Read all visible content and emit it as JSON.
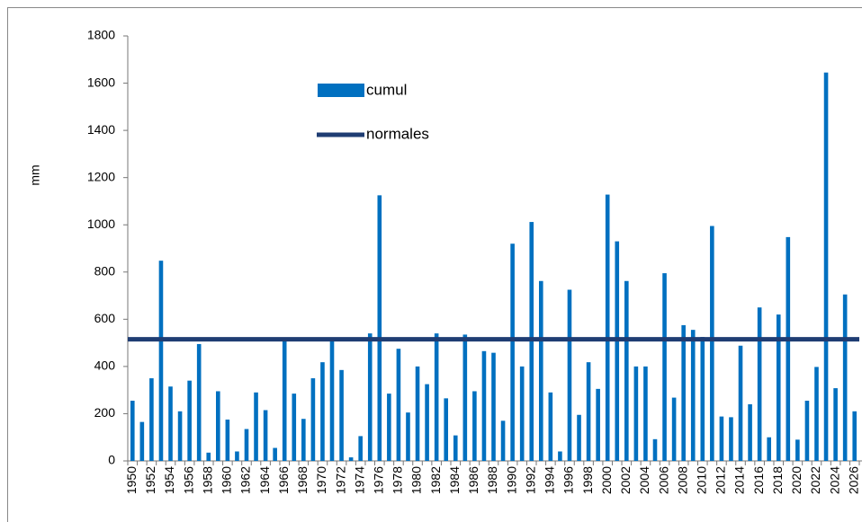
{
  "chart_data": {
    "type": "bar",
    "y_label": "mm",
    "categories": [
      "1950",
      null,
      "1952",
      null,
      "1954",
      null,
      "1956",
      null,
      "1958",
      null,
      "1960",
      null,
      "1962",
      null,
      "1964",
      null,
      "1966",
      null,
      "1968",
      null,
      "1970",
      null,
      "1972",
      null,
      "1974",
      null,
      "1976",
      null,
      "1978",
      null,
      "1980",
      null,
      "1982",
      null,
      "1984",
      null,
      "1986",
      null,
      "1988",
      null,
      "1990",
      null,
      "1992",
      null,
      "1994",
      null,
      "1996",
      null,
      "1998",
      null,
      "2000",
      null,
      "2002",
      null,
      "2004",
      null,
      "2006",
      null,
      "2008",
      null,
      "2010",
      null,
      "2012",
      null,
      "2014",
      null,
      "2016",
      null,
      "2018",
      null,
      "2020",
      null,
      "2022",
      null,
      "2024",
      null,
      "2026"
    ],
    "series": [
      {
        "name": "cumul",
        "color": "#0070c0",
        "values": [
          255,
          165,
          350,
          848,
          315,
          210,
          340,
          495,
          35,
          295,
          175,
          40,
          135,
          290,
          215,
          55,
          515,
          285,
          178,
          350,
          418,
          512,
          385,
          15,
          105,
          540,
          1125,
          285,
          475,
          205,
          400,
          325,
          540,
          265,
          108,
          535,
          295,
          465,
          458,
          170,
          920,
          400,
          1012,
          762,
          290,
          40,
          725,
          195,
          418,
          305,
          1128,
          930,
          762,
          400,
          400,
          92,
          795,
          268,
          575,
          555,
          525,
          995,
          188,
          185,
          488,
          240,
          650,
          100,
          620,
          948,
          90,
          255,
          398,
          1645,
          308,
          705,
          210
        ]
      }
    ],
    "reference_line": {
      "name": "normales",
      "color": "#1f3d73",
      "value": 515
    },
    "ylim": [
      0,
      1800
    ],
    "yticks": [
      0,
      200,
      400,
      600,
      800,
      1000,
      1200,
      1400,
      1600,
      1800
    ]
  }
}
